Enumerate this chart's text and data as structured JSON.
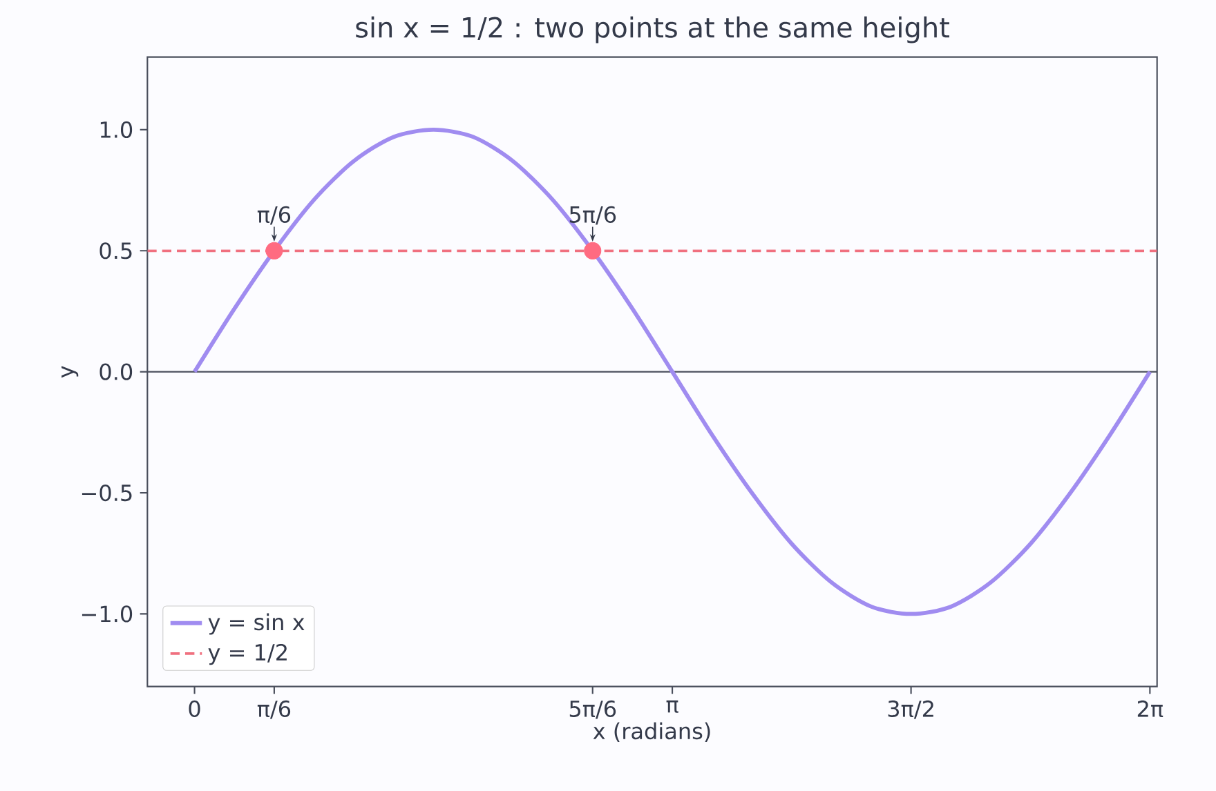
{
  "chart_data": {
    "type": "line",
    "title": "sin x = 1/2 : two points at the same height",
    "xlabel": "x (radians)",
    "ylabel": "y",
    "series": [
      {
        "name": "y = sin x",
        "color": "#a08cf0",
        "line_style": "solid",
        "marker": "none",
        "x": [
          0,
          0.262,
          0.524,
          0.785,
          1.047,
          1.309,
          1.571,
          1.833,
          2.094,
          2.356,
          2.618,
          2.88,
          3.142,
          3.403,
          3.665,
          3.927,
          4.189,
          4.451,
          4.712,
          4.974,
          5.236,
          5.498,
          5.76,
          6.021,
          6.283
        ],
        "values": [
          0,
          0.26,
          0.5,
          0.71,
          0.87,
          0.97,
          1,
          0.97,
          0.87,
          0.71,
          0.5,
          0.26,
          0,
          -0.26,
          -0.5,
          -0.71,
          -0.87,
          -0.97,
          -1,
          -0.97,
          -0.87,
          -0.71,
          -0.5,
          -0.26,
          0
        ]
      },
      {
        "name": "y = 1/2",
        "color": "#f0707f",
        "line_style": "dashed",
        "marker": "none",
        "x": [
          -0.31,
          6.33
        ],
        "values": [
          0.5,
          0.5
        ]
      },
      {
        "type": "scatter",
        "color": "#ff6b81",
        "marker": "circle",
        "x": [
          0.524,
          2.618
        ],
        "values": [
          0.5,
          0.5
        ]
      }
    ],
    "annotations": [
      {
        "text": "π/6",
        "x": 0.524,
        "y": 0.5
      },
      {
        "text": "5π/6",
        "x": 2.618,
        "y": 0.5
      }
    ],
    "ref_lines": [
      {
        "axis": "y",
        "value": 0,
        "color": "#4a4f5c"
      }
    ],
    "xlim": [
      -0.31,
      6.33
    ],
    "ylim": [
      -1.3,
      1.3
    ],
    "xticks": [
      {
        "value": 0,
        "label": "0"
      },
      {
        "value": 0.524,
        "label": "π/6"
      },
      {
        "value": 2.618,
        "label": "5π/6"
      },
      {
        "value": 3.142,
        "label": "π"
      },
      {
        "value": 4.712,
        "label": "3π/2"
      },
      {
        "value": 6.283,
        "label": "2π"
      }
    ],
    "yticks": [
      {
        "value": -1,
        "label": "−1.0"
      },
      {
        "value": -0.5,
        "label": "−0.5"
      },
      {
        "value": 0,
        "label": "0.0"
      },
      {
        "value": 0.5,
        "label": "0.5"
      },
      {
        "value": 1,
        "label": "1.0"
      }
    ],
    "grid": false,
    "legend": "bottom left"
  }
}
